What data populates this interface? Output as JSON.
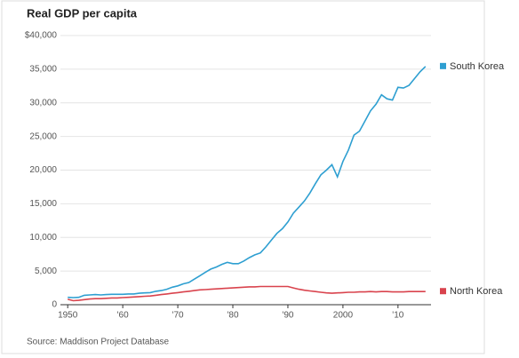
{
  "chart_data": {
    "type": "line",
    "title": "Real GDP per capita",
    "source": "Source: Maddison Project Database",
    "x": [
      1950,
      1951,
      1952,
      1953,
      1954,
      1955,
      1956,
      1957,
      1958,
      1959,
      1960,
      1961,
      1962,
      1963,
      1964,
      1965,
      1966,
      1967,
      1968,
      1969,
      1970,
      1971,
      1972,
      1973,
      1974,
      1975,
      1976,
      1977,
      1978,
      1979,
      1980,
      1981,
      1982,
      1983,
      1984,
      1985,
      1986,
      1987,
      1988,
      1989,
      1990,
      1991,
      1992,
      1993,
      1994,
      1995,
      1996,
      1997,
      1998,
      1999,
      2000,
      2001,
      2002,
      2003,
      2004,
      2005,
      2006,
      2007,
      2008,
      2009,
      2010,
      2011,
      2012,
      2013,
      2014,
      2015
    ],
    "series": [
      {
        "name": "South Korea",
        "color": "#2e9fd1",
        "values": [
          1100,
          1050,
          1100,
          1400,
          1450,
          1500,
          1450,
          1500,
          1550,
          1550,
          1550,
          1600,
          1600,
          1700,
          1750,
          1800,
          2000,
          2100,
          2300,
          2600,
          2800,
          3100,
          3300,
          3800,
          4300,
          4800,
          5300,
          5600,
          6000,
          6300,
          6100,
          6100,
          6500,
          7000,
          7400,
          7700,
          8600,
          9600,
          10600,
          11300,
          12300,
          13600,
          14500,
          15400,
          16600,
          18000,
          19300,
          20000,
          20800,
          19000,
          21300,
          23000,
          25200,
          25800,
          27300,
          28800,
          29800,
          31200,
          30600,
          30400,
          32300,
          32200,
          32600,
          33600,
          34600,
          35400
        ]
      },
      {
        "name": "North Korea",
        "color": "#d9434d",
        "values": [
          800,
          600,
          650,
          750,
          850,
          900,
          900,
          950,
          1000,
          1000,
          1050,
          1100,
          1150,
          1200,
          1250,
          1300,
          1400,
          1500,
          1600,
          1700,
          1800,
          1900,
          2000,
          2100,
          2200,
          2250,
          2300,
          2350,
          2400,
          2450,
          2500,
          2550,
          2600,
          2650,
          2650,
          2700,
          2700,
          2700,
          2700,
          2700,
          2700,
          2500,
          2300,
          2150,
          2050,
          1950,
          1850,
          1750,
          1700,
          1750,
          1800,
          1850,
          1850,
          1900,
          1900,
          1950,
          1900,
          1950,
          1950,
          1900,
          1900,
          1900,
          1950,
          1950,
          1950,
          1950
        ]
      }
    ],
    "xlim": [
      1949,
      2016
    ],
    "xticks": [
      1950,
      {
        "value": 1960,
        "label": "'60"
      },
      {
        "value": 1970,
        "label": "'70"
      },
      {
        "value": 1980,
        "label": "'80"
      },
      {
        "value": 1990,
        "label": "'90"
      },
      2000,
      {
        "value": 2010,
        "label": "'10"
      }
    ],
    "ylim": [
      0,
      40000
    ],
    "yticks": [
      0,
      {
        "value": 5000,
        "label": "5,000"
      },
      {
        "value": 10000,
        "label": "10,000"
      },
      {
        "value": 15000,
        "label": "15,000"
      },
      {
        "value": 20000,
        "label": "20,000"
      },
      {
        "value": 25000,
        "label": "25,000"
      },
      {
        "value": 30000,
        "label": "30,000"
      },
      {
        "value": 35000,
        "label": "35,000"
      },
      {
        "value": 40000,
        "label": "$40,000"
      }
    ],
    "grid": true
  }
}
